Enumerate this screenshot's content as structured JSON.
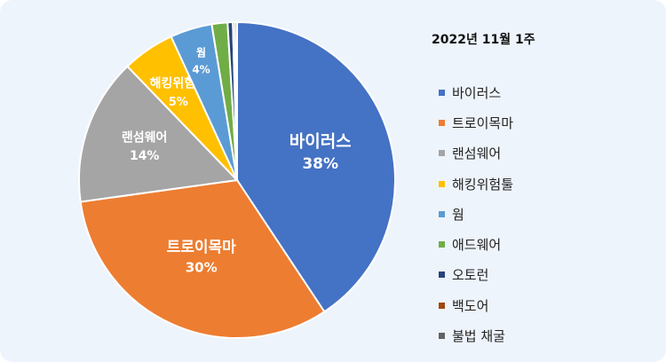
{
  "chart_data": {
    "type": "pie",
    "title": "2022년  11월 1주",
    "legend_position": "right",
    "slices": [
      {
        "label": "바이러스",
        "value": 38,
        "display": "38%",
        "color": "#4472c4",
        "label_color": "#ffffff"
      },
      {
        "label": "트로이목마",
        "value": 30,
        "display": "30%",
        "color": "#ed7d31",
        "label_color": "#ffffff"
      },
      {
        "label": "랜섬웨어",
        "value": 14,
        "display": "14%",
        "color": "#a5a5a5",
        "label_color": "#ffffff"
      },
      {
        "label": "해킹위험툴",
        "value": 5,
        "display": "5%",
        "color": "#ffc000",
        "label_color": "#ffffff"
      },
      {
        "label": "웜",
        "value": 4,
        "display": "4%",
        "color": "#5b9bd5",
        "label_color": "#ffffff"
      },
      {
        "label": "애드웨어",
        "value": 1.5,
        "display": "",
        "color": "#70ad47"
      },
      {
        "label": "오토런",
        "value": 0.5,
        "display": "",
        "color": "#264478"
      },
      {
        "label": "백도어",
        "value": 0.2,
        "display": "",
        "color": "#9e480e"
      },
      {
        "label": "불법 채굴",
        "value": 0.2,
        "display": "",
        "color": "#636363"
      }
    ]
  }
}
